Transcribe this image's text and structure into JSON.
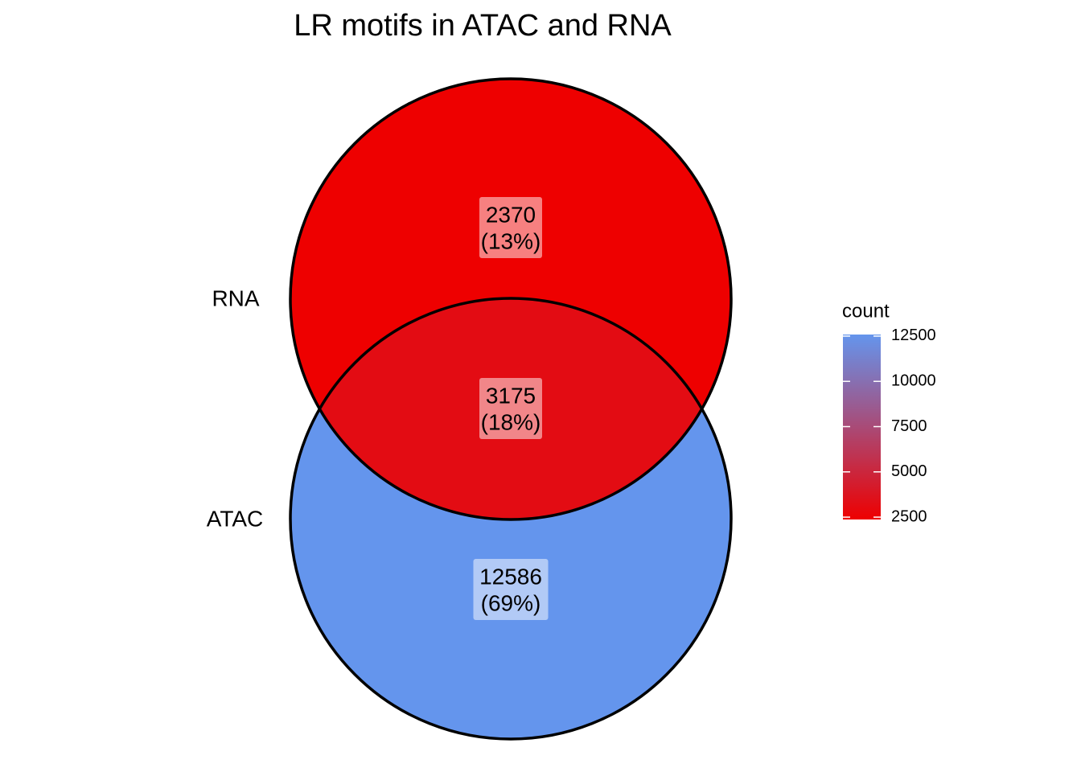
{
  "chart_data": {
    "type": "venn",
    "title": "LR motifs in ATAC and RNA",
    "sets": [
      "RNA",
      "ATAC"
    ],
    "regions": [
      "RNA",
      "RNA & ATAC",
      "ATAC"
    ],
    "values": [
      2370,
      3175,
      12586
    ],
    "percents": [
      13,
      18,
      69
    ],
    "percent_labels": [
      "(13%)",
      "(18%)",
      "(69%)"
    ],
    "legend_title": "count",
    "clim": [
      2370,
      12586
    ],
    "cticks": [
      2500,
      5000,
      7500,
      10000,
      12500
    ],
    "low_color": "#ee0000",
    "high_color": "#6495ed",
    "outline_color": "#000000"
  }
}
